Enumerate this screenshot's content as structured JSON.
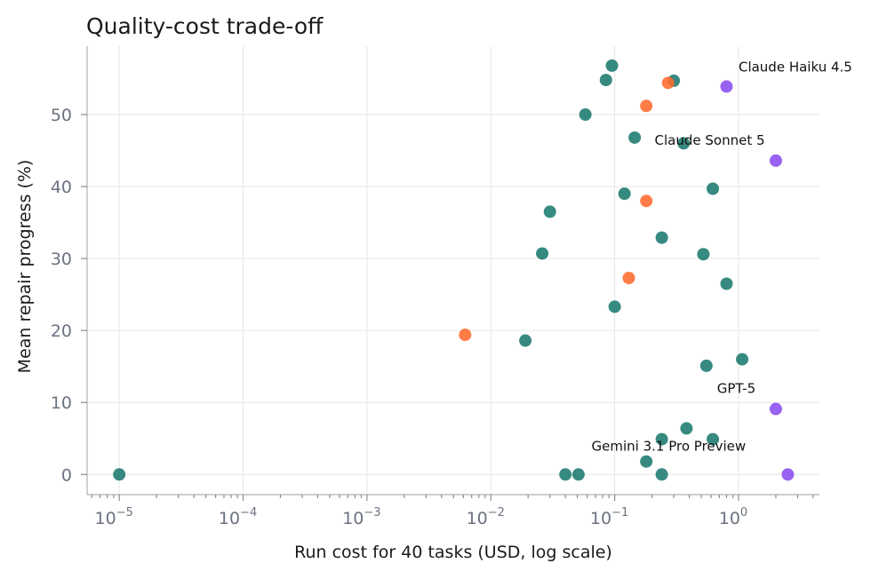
{
  "chart_data": {
    "type": "scatter",
    "title": "Quality-cost trade-off",
    "xlabel": "Run cost for 40 tasks (USD, log scale)",
    "ylabel": "Mean repair progress (%)",
    "x_scale": "log",
    "xlim": [
      5.5e-06,
      4.5
    ],
    "ylim": [
      -2.8,
      59.5
    ],
    "grid": true,
    "x_ticks": [
      {
        "value": 1e-05,
        "base": "10",
        "exp": "−5"
      },
      {
        "value": 0.0001,
        "base": "10",
        "exp": "−4"
      },
      {
        "value": 0.001,
        "base": "10",
        "exp": "−3"
      },
      {
        "value": 0.01,
        "base": "10",
        "exp": "−2"
      },
      {
        "value": 0.1,
        "base": "10",
        "exp": "−1"
      },
      {
        "value": 1,
        "base": "10",
        "exp": "0"
      }
    ],
    "y_ticks": [
      0,
      10,
      20,
      30,
      40,
      50
    ],
    "colors": {
      "teal": "#1b7a6e",
      "orange": "#ff6a2e",
      "purple": "#8a4cf0"
    },
    "points": [
      {
        "x": 1e-05,
        "y": 0,
        "color": "teal"
      },
      {
        "x": 0.04,
        "y": 0,
        "color": "teal"
      },
      {
        "x": 0.051,
        "y": 0,
        "color": "teal"
      },
      {
        "x": 0.18,
        "y": 1.8,
        "color": "teal"
      },
      {
        "x": 0.24,
        "y": 0,
        "color": "teal"
      },
      {
        "x": 0.24,
        "y": 4.9,
        "color": "teal"
      },
      {
        "x": 0.38,
        "y": 6.4,
        "color": "teal"
      },
      {
        "x": 0.62,
        "y": 4.9,
        "color": "teal"
      },
      {
        "x": 0.55,
        "y": 15.1,
        "color": "teal"
      },
      {
        "x": 1.07,
        "y": 16.0,
        "color": "teal"
      },
      {
        "x": 0.019,
        "y": 18.6,
        "color": "teal"
      },
      {
        "x": 0.1,
        "y": 23.3,
        "color": "teal"
      },
      {
        "x": 0.8,
        "y": 26.5,
        "color": "teal"
      },
      {
        "x": 0.026,
        "y": 30.7,
        "color": "teal"
      },
      {
        "x": 0.52,
        "y": 30.6,
        "color": "teal"
      },
      {
        "x": 0.24,
        "y": 32.9,
        "color": "teal"
      },
      {
        "x": 0.03,
        "y": 36.5,
        "color": "teal"
      },
      {
        "x": 0.12,
        "y": 39.0,
        "color": "teal"
      },
      {
        "x": 0.62,
        "y": 39.7,
        "color": "teal"
      },
      {
        "x": 0.145,
        "y": 46.8,
        "color": "teal"
      },
      {
        "x": 0.36,
        "y": 46.0,
        "color": "teal"
      },
      {
        "x": 0.058,
        "y": 50.0,
        "color": "teal"
      },
      {
        "x": 0.085,
        "y": 54.8,
        "color": "teal"
      },
      {
        "x": 0.095,
        "y": 56.8,
        "color": "teal"
      },
      {
        "x": 0.3,
        "y": 54.7,
        "color": "teal"
      },
      {
        "x": 0.0062,
        "y": 19.4,
        "color": "orange"
      },
      {
        "x": 0.13,
        "y": 27.3,
        "color": "orange"
      },
      {
        "x": 0.18,
        "y": 38.0,
        "color": "orange"
      },
      {
        "x": 0.18,
        "y": 51.2,
        "color": "orange"
      },
      {
        "x": 0.27,
        "y": 54.4,
        "color": "orange"
      },
      {
        "x": 0.8,
        "y": 53.9,
        "color": "purple"
      },
      {
        "x": 2.0,
        "y": 43.6,
        "color": "purple"
      },
      {
        "x": 2.0,
        "y": 9.1,
        "color": "purple"
      },
      {
        "x": 2.5,
        "y": 0,
        "color": "purple"
      }
    ],
    "annotations": [
      {
        "text": "Claude Haiku 4.5",
        "x": 1.0,
        "y": 56.0
      },
      {
        "text": "Claude Sonnet 5",
        "x": 0.21,
        "y": 45.8
      },
      {
        "text": "GPT-5",
        "x": 0.67,
        "y": 11.3
      },
      {
        "text": "Gemini 3.1 Pro Preview",
        "x": 0.065,
        "y": 3.3
      }
    ]
  }
}
